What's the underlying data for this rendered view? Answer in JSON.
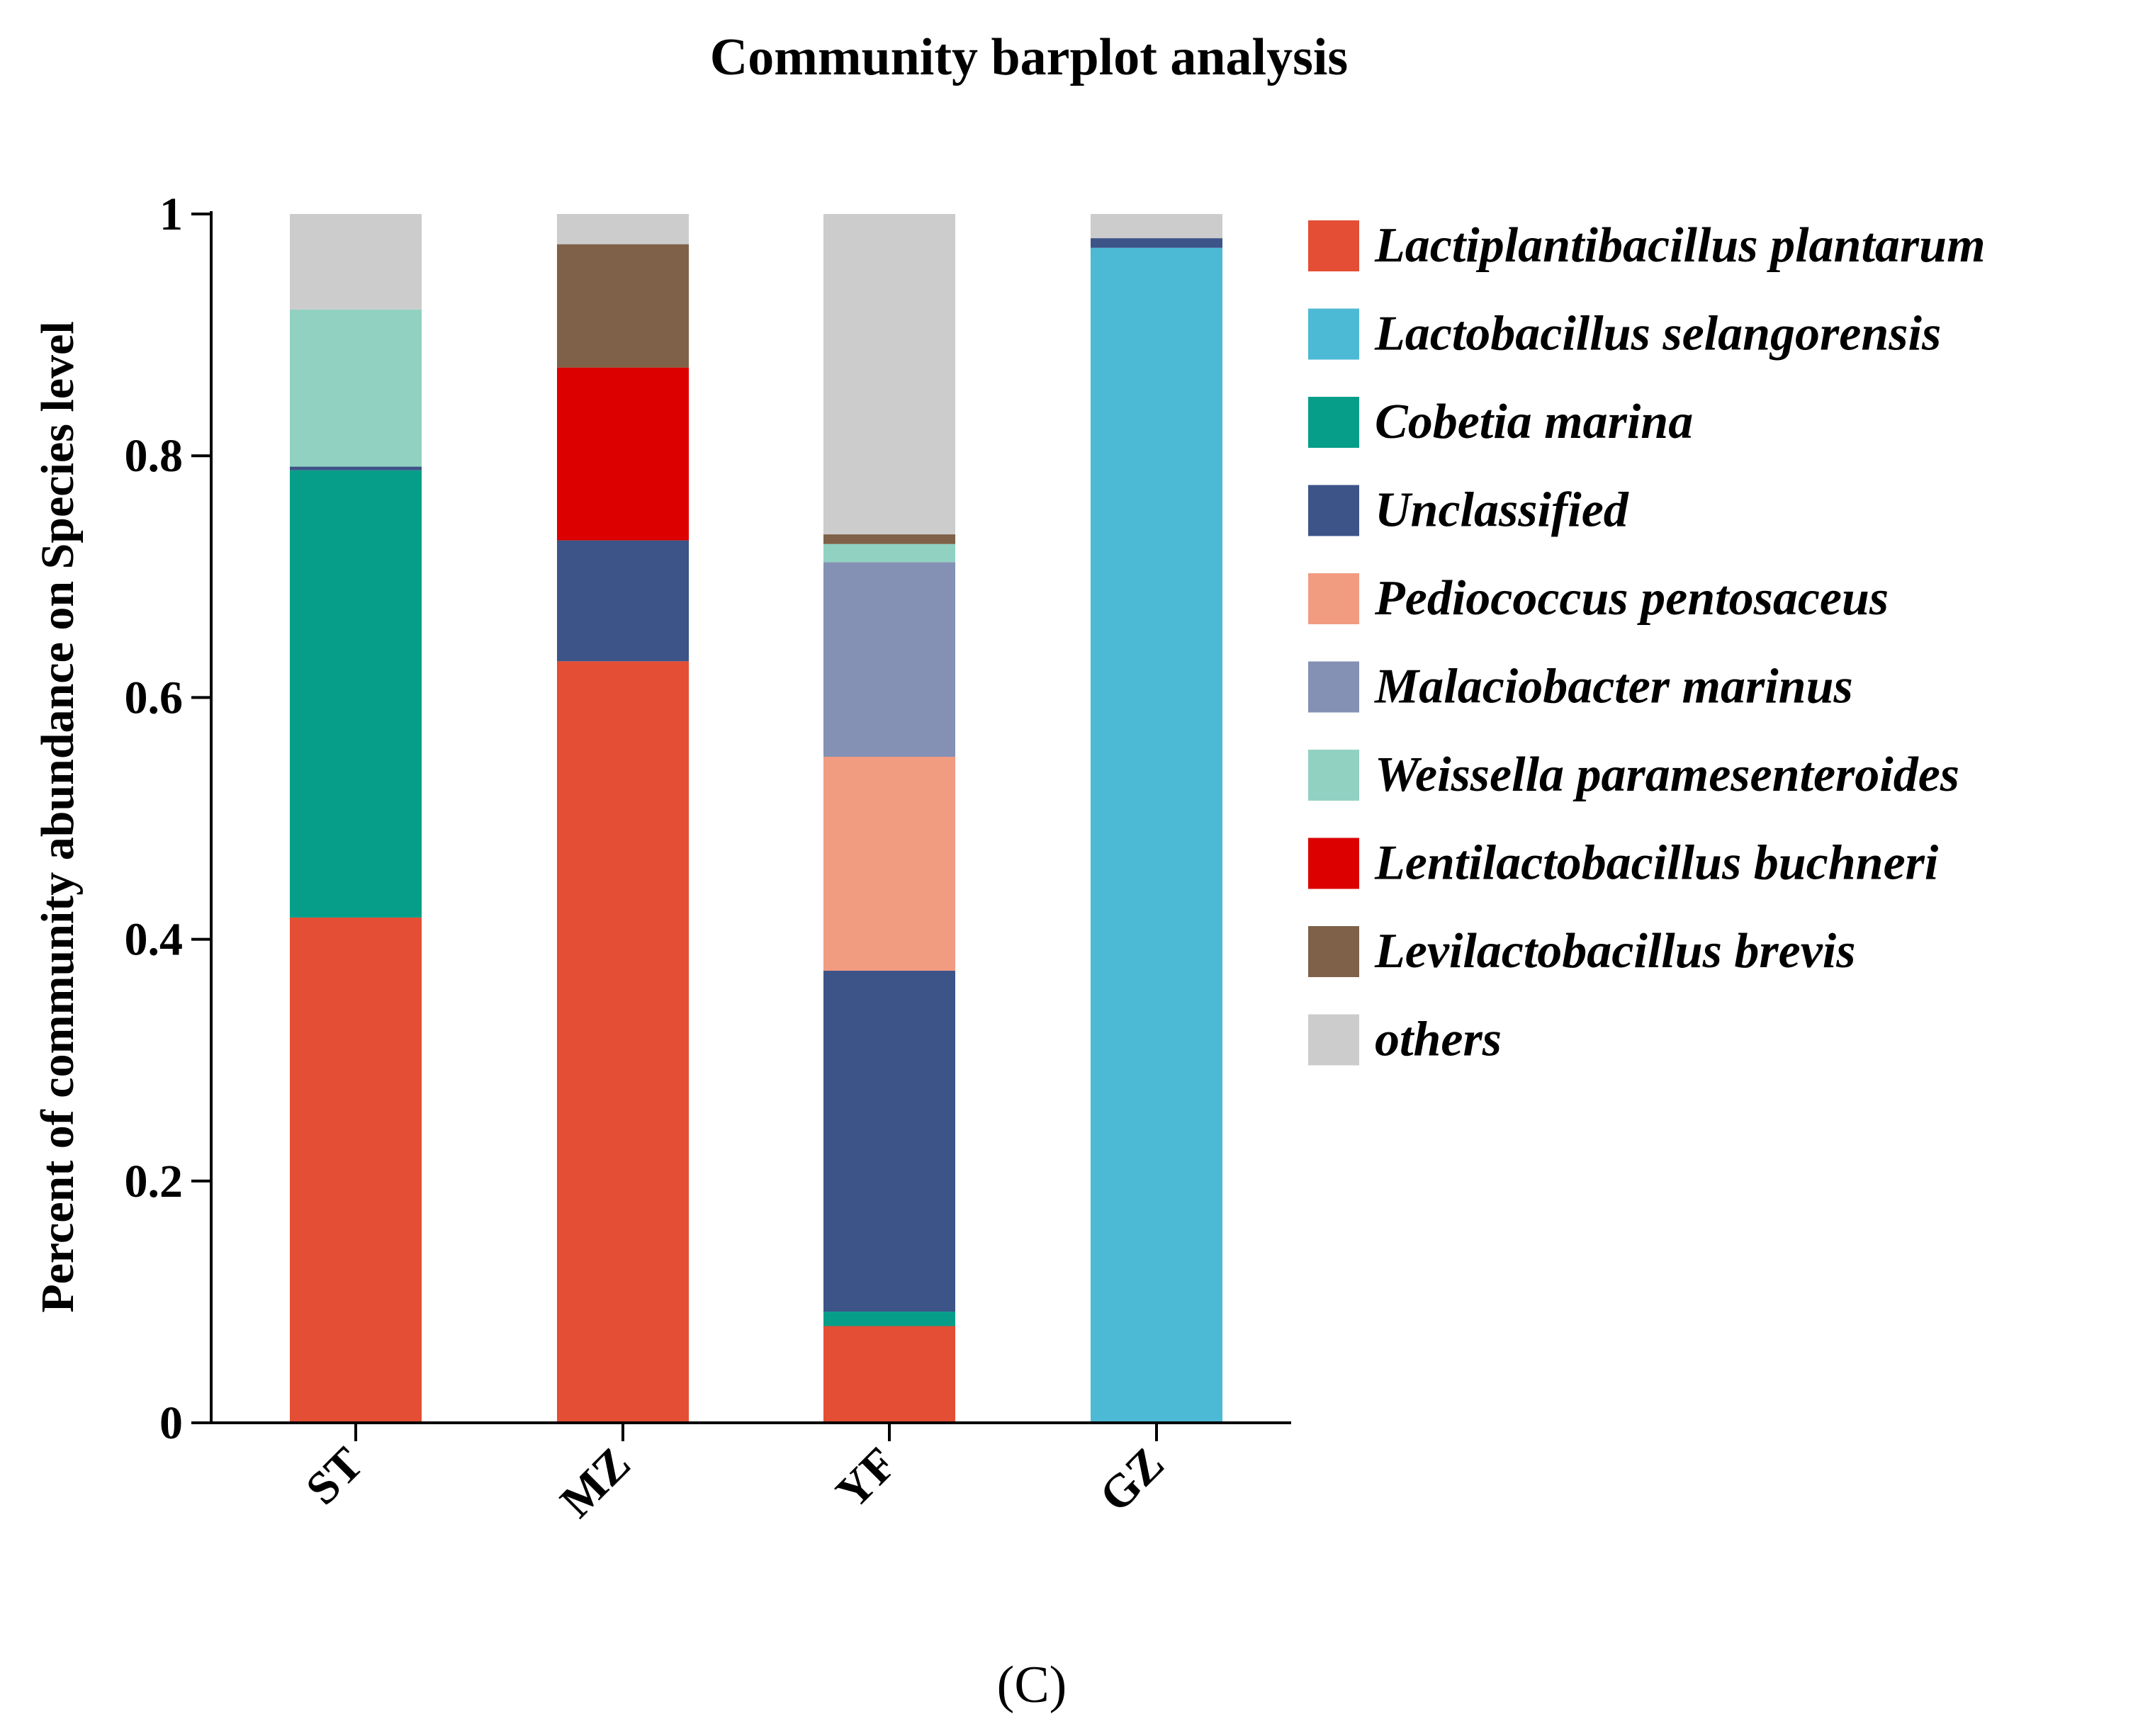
{
  "chart_data": {
    "type": "bar",
    "stacked": true,
    "title": "Community barplot analysis",
    "xlabel": "",
    "ylabel": "Percent of community abundance on Species level",
    "ylim": [
      0,
      1
    ],
    "yticks": [
      "0",
      "0.2",
      "0.4",
      "0.6",
      "0.8",
      "1"
    ],
    "ytick_values": [
      0,
      0.2,
      0.4,
      0.6,
      0.8,
      1
    ],
    "categories": [
      "ST",
      "MZ",
      "YF",
      "GZ"
    ],
    "legend_position": "right",
    "series": [
      {
        "name": "Lactiplantibacillus plantarum",
        "color": "#E34E34",
        "values": [
          0.418,
          0.63,
          0.08,
          0.0
        ]
      },
      {
        "name": "Lactobacillus selangorensis",
        "color": "#4CB9D5",
        "values": [
          0.0,
          0.0,
          0.0,
          0.972
        ]
      },
      {
        "name": "Cobetia marina",
        "color": "#069E88",
        "values": [
          0.37,
          0.0,
          0.012,
          0.0
        ]
      },
      {
        "name": "Unclassified",
        "color": "#3D5488",
        "values": [
          0.003,
          0.1,
          0.282,
          0.008
        ]
      },
      {
        "name": "Pediococcus pentosaceus",
        "color": "#F19B81",
        "values": [
          0.0,
          0.0,
          0.177,
          0.0
        ]
      },
      {
        "name": "Malaciobacter marinus",
        "color": "#8491B4",
        "values": [
          0.0,
          0.0,
          0.161,
          0.0
        ]
      },
      {
        "name": "Weissella paramesenteroides",
        "color": "#91D1C2",
        "values": [
          0.13,
          0.0,
          0.015,
          0.0
        ]
      },
      {
        "name": "Lentilactobacillus buchneri",
        "color": "#DC0000",
        "values": [
          0.0,
          0.143,
          0.0,
          0.0
        ]
      },
      {
        "name": "Levilactobacillus brevis",
        "color": "#7E6148",
        "values": [
          0.0,
          0.102,
          0.008,
          0.0
        ]
      },
      {
        "name": "others",
        "color": "#CCCCCC",
        "values": [
          0.079,
          0.025,
          0.265,
          0.02
        ]
      }
    ]
  },
  "caption": "(C)"
}
